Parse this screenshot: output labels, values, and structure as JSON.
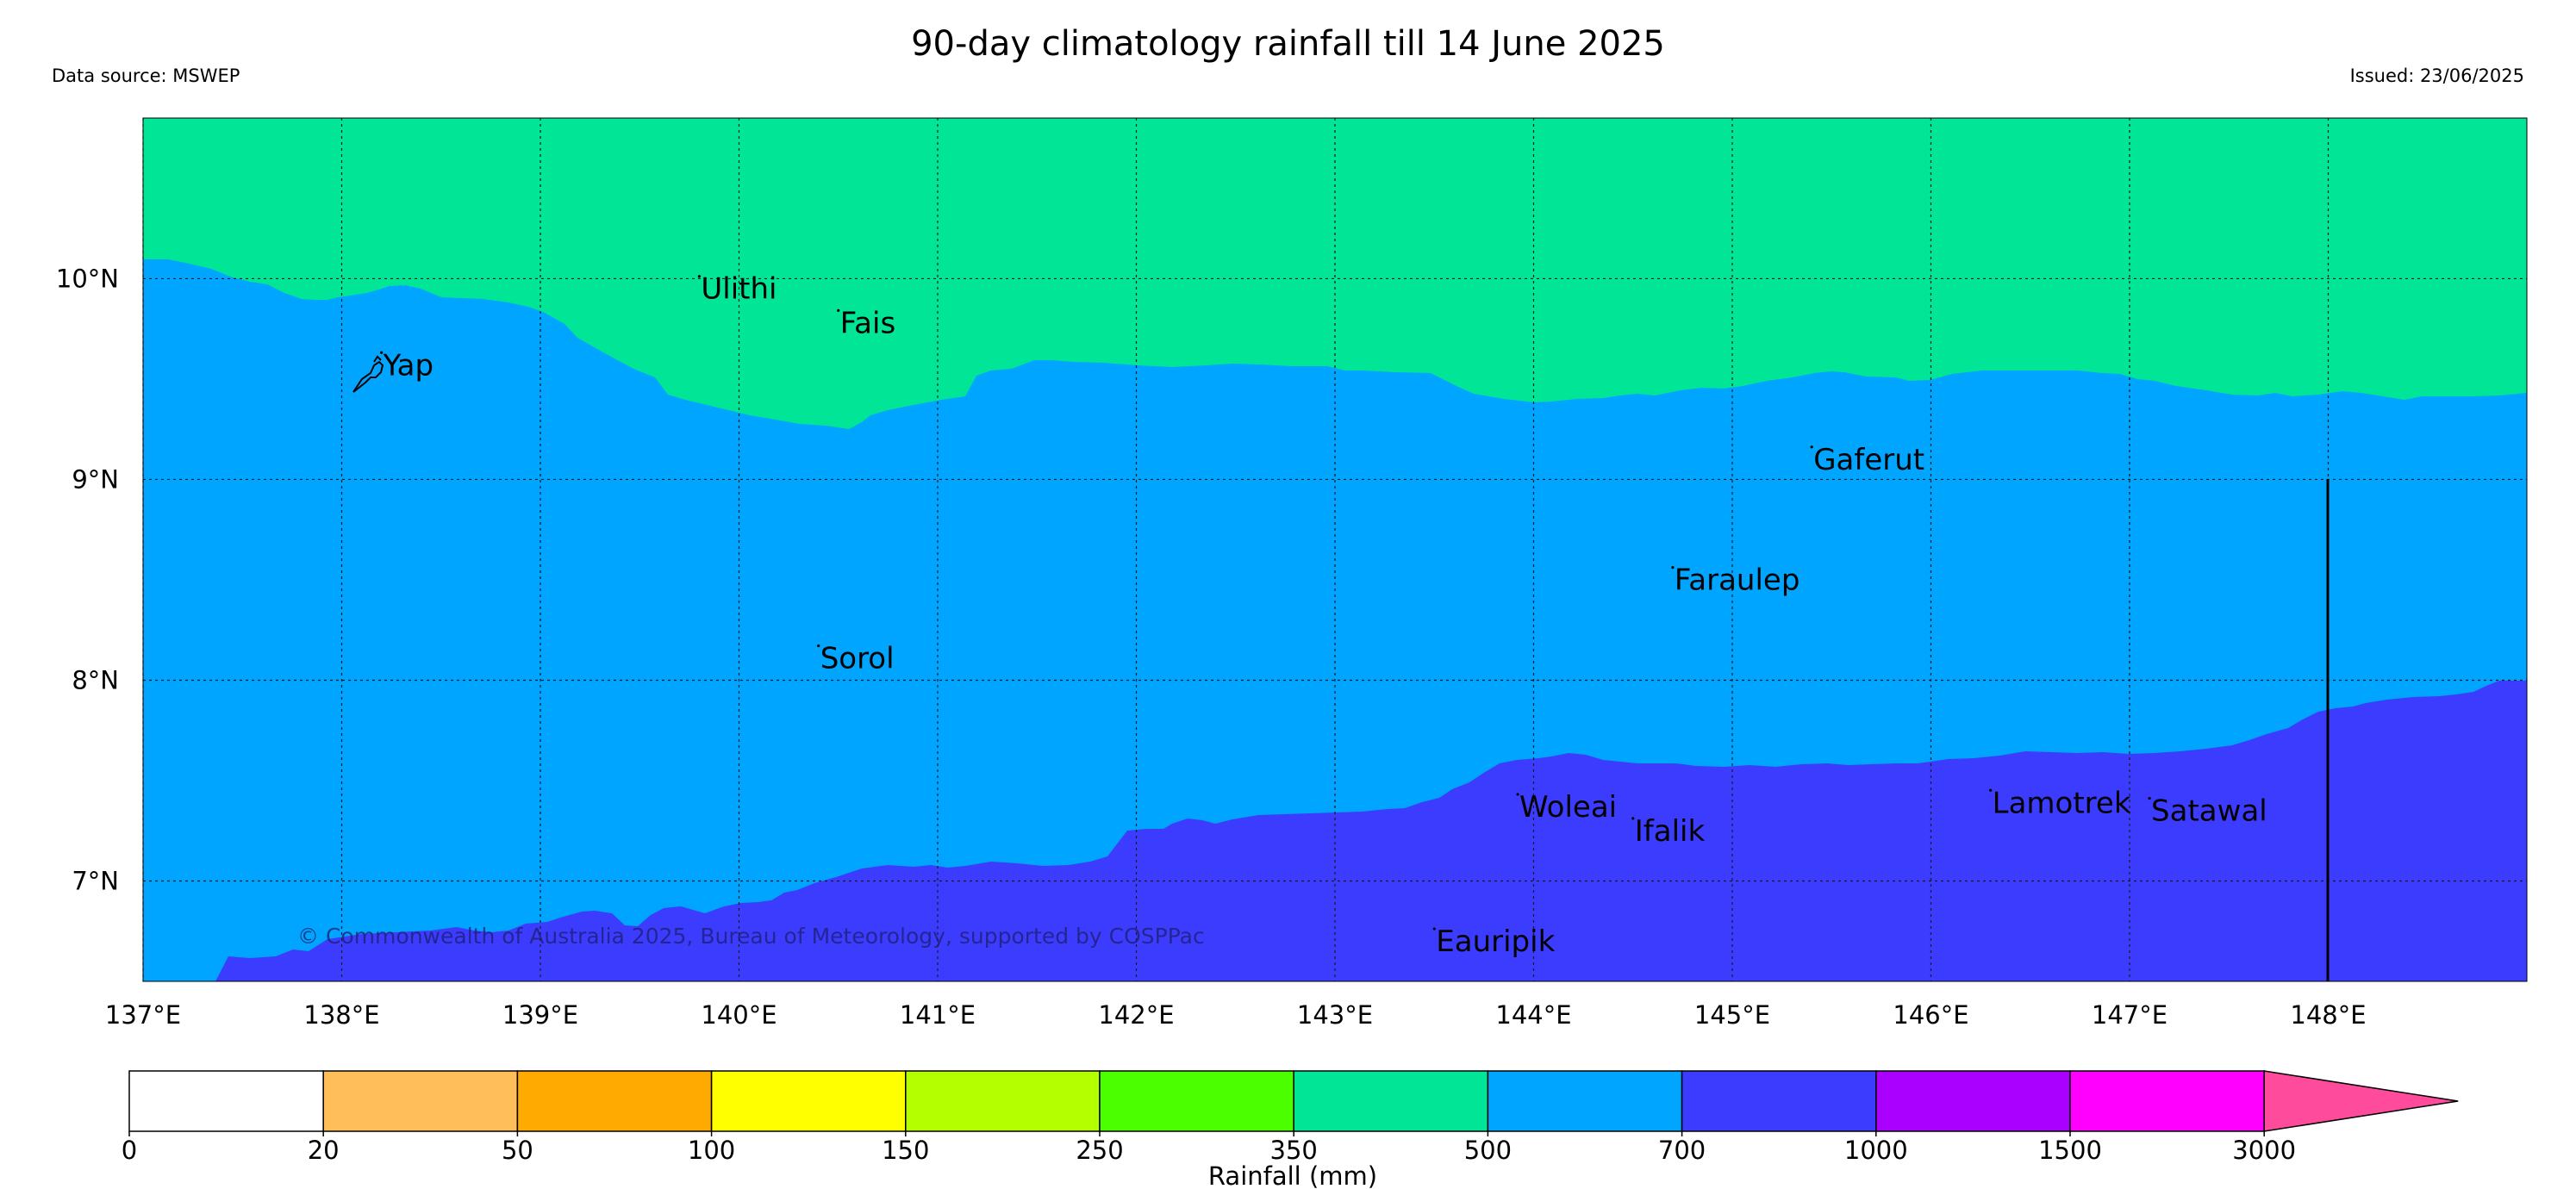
{
  "header": {
    "title": "90-day climatology rainfall till 14 June 2025",
    "data_source": "Data source: MSWEP",
    "issued": "Issued: 23/06/2025"
  },
  "map": {
    "lon_range": [
      137,
      149
    ],
    "lat_range": [
      6.5,
      10.8
    ],
    "grid": true,
    "lat_labels": [
      "10°N",
      "9°N",
      "8°N",
      "7°N"
    ],
    "lat_values": [
      10,
      9,
      8,
      7
    ],
    "lon_labels": [
      "137°E",
      "138°E",
      "139°E",
      "140°E",
      "141°E",
      "142°E",
      "143°E",
      "144°E",
      "145°E",
      "146°E",
      "147°E",
      "148°E"
    ],
    "lon_values": [
      137,
      138,
      139,
      140,
      141,
      142,
      143,
      144,
      145,
      146,
      147,
      148
    ],
    "zones": [
      {
        "category": "350-500",
        "color": "#00e696"
      },
      {
        "category": "500-700",
        "color": "#00a5ff"
      },
      {
        "category": "700-1000",
        "color": "#3c3cff"
      }
    ],
    "places": [
      {
        "name": "Ulithi",
        "lon": 139.8,
        "lat": 9.9
      },
      {
        "name": "Fais",
        "lon": 140.5,
        "lat": 9.73
      },
      {
        "name": "Yap",
        "lon": 138.2,
        "lat": 9.52
      },
      {
        "name": "Gaferut",
        "lon": 145.4,
        "lat": 9.05
      },
      {
        "name": "Faraulep",
        "lon": 144.7,
        "lat": 8.45
      },
      {
        "name": "Sorol",
        "lon": 140.4,
        "lat": 8.06
      },
      {
        "name": "Woleai",
        "lon": 143.92,
        "lat": 7.32
      },
      {
        "name": "Ifalik",
        "lon": 144.5,
        "lat": 7.2
      },
      {
        "name": "Lamotrek",
        "lon": 146.3,
        "lat": 7.34
      },
      {
        "name": "Satawal",
        "lon": 147.1,
        "lat": 7.3
      },
      {
        "name": "Eauripik",
        "lon": 143.5,
        "lat": 6.65
      }
    ],
    "copyright": "© Commonwealth of Australia 2025, Bureau of Meteorology, supported by COSPPac"
  },
  "colorbar": {
    "label": "Rainfall (mm)",
    "ticks": [
      "0",
      "20",
      "50",
      "100",
      "150",
      "250",
      "350",
      "500",
      "700",
      "1000",
      "1500",
      "3000"
    ],
    "colors": [
      "#ffffff",
      "#ffbe5a",
      "#ffaa00",
      "#ffff00",
      "#b4ff00",
      "#4bff00",
      "#00e696",
      "#00a5ff",
      "#3c3cff",
      "#aa00ff",
      "#ff00ff"
    ],
    "extend_color": "#ff4b9b"
  }
}
